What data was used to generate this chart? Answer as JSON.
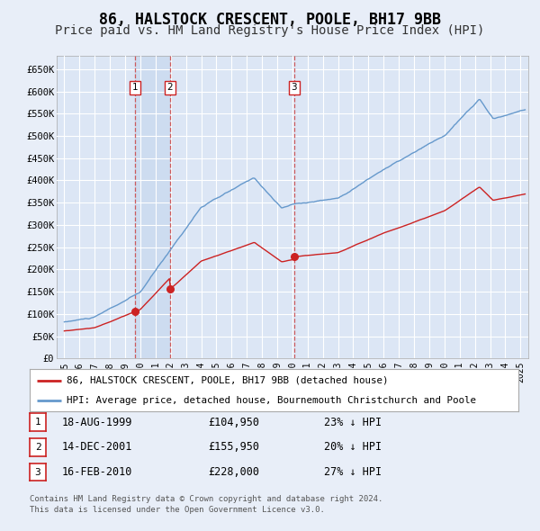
{
  "title": "86, HALSTOCK CRESCENT, POOLE, BH17 9BB",
  "subtitle": "Price paid vs. HM Land Registry's House Price Index (HPI)",
  "title_fontsize": 12,
  "subtitle_fontsize": 10,
  "ylim": [
    0,
    680000
  ],
  "yticks": [
    0,
    50000,
    100000,
    150000,
    200000,
    250000,
    300000,
    350000,
    400000,
    450000,
    500000,
    550000,
    600000,
    650000
  ],
  "ytick_labels": [
    "£0",
    "£50K",
    "£100K",
    "£150K",
    "£200K",
    "£250K",
    "£300K",
    "£350K",
    "£400K",
    "£450K",
    "£500K",
    "£550K",
    "£600K",
    "£650K"
  ],
  "background_color": "#e8eef8",
  "plot_bg_color": "#dce6f5",
  "grid_color": "#ffffff",
  "hpi_color": "#6699cc",
  "price_color": "#cc2222",
  "shade_color": "#c8d8ee",
  "legend_label_hpi": "HPI: Average price, detached house, Bournemouth Christchurch and Poole",
  "legend_label_price": "86, HALSTOCK CRESCENT, POOLE, BH17 9BB (detached house)",
  "transactions": [
    {
      "label": "1",
      "date_x": 1999.63,
      "price": 104950,
      "date_str": "18-AUG-1999",
      "price_str": "£104,950",
      "pct": "23%",
      "dir": "↓"
    },
    {
      "label": "2",
      "date_x": 2001.96,
      "price": 155950,
      "date_str": "14-DEC-2001",
      "price_str": "£155,950",
      "pct": "20%",
      "dir": "↓"
    },
    {
      "label": "3",
      "date_x": 2010.12,
      "price": 228000,
      "date_str": "16-FEB-2010",
      "price_str": "£228,000",
      "pct": "27%",
      "dir": "↓"
    }
  ],
  "footer_line1": "Contains HM Land Registry data © Crown copyright and database right 2024.",
  "footer_line2": "This data is licensed under the Open Government Licence v3.0.",
  "xtick_years": [
    1995,
    1996,
    1997,
    1998,
    1999,
    2000,
    2001,
    2002,
    2003,
    2004,
    2005,
    2006,
    2007,
    2008,
    2009,
    2010,
    2011,
    2012,
    2013,
    2014,
    2015,
    2016,
    2017,
    2018,
    2019,
    2020,
    2021,
    2022,
    2023,
    2024,
    2025
  ],
  "xlim": [
    1994.5,
    2025.5
  ]
}
